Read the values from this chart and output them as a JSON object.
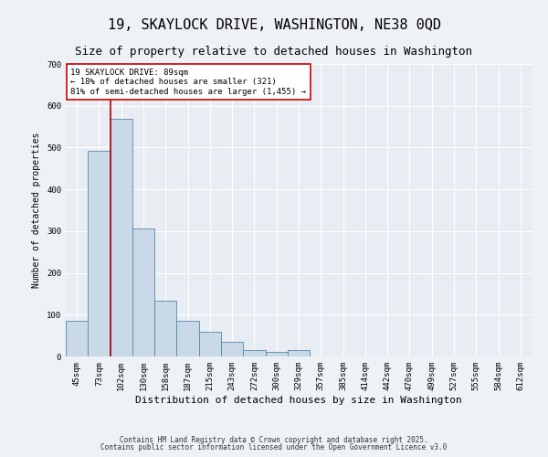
{
  "title": "19, SKAYLOCK DRIVE, WASHINGTON, NE38 0QD",
  "subtitle": "Size of property relative to detached houses in Washington",
  "xlabel": "Distribution of detached houses by size in Washington",
  "ylabel": "Number of detached properties",
  "categories": [
    "45sqm",
    "73sqm",
    "102sqm",
    "130sqm",
    "158sqm",
    "187sqm",
    "215sqm",
    "243sqm",
    "272sqm",
    "300sqm",
    "329sqm",
    "357sqm",
    "385sqm",
    "414sqm",
    "442sqm",
    "470sqm",
    "499sqm",
    "527sqm",
    "555sqm",
    "584sqm",
    "612sqm"
  ],
  "values": [
    85,
    492,
    568,
    307,
    133,
    85,
    60,
    35,
    15,
    12,
    15,
    0,
    0,
    0,
    0,
    0,
    0,
    0,
    0,
    0,
    0
  ],
  "bar_color": "#c9d9e8",
  "bar_edge_color": "#5588aa",
  "vline_x": 1.5,
  "vline_color": "#aa0000",
  "annotation_text": "19 SKAYLOCK DRIVE: 89sqm\n← 18% of detached houses are smaller (321)\n81% of semi-detached houses are larger (1,455) →",
  "annotation_box_color": "#ffffff",
  "annotation_box_edge": "#cc0000",
  "ylim": [
    0,
    700
  ],
  "yticks": [
    0,
    100,
    200,
    300,
    400,
    500,
    600,
    700
  ],
  "footer1": "Contains HM Land Registry data © Crown copyright and database right 2025.",
  "footer2": "Contains public sector information licensed under the Open Government Licence v3.0",
  "bg_color": "#eef2f7",
  "plot_bg_color": "#e8edf4",
  "grid_color": "#ffffff",
  "title_fontsize": 11,
  "subtitle_fontsize": 9,
  "xlabel_fontsize": 8,
  "ylabel_fontsize": 7,
  "tick_fontsize": 6.5,
  "annot_fontsize": 6.5,
  "footer_fontsize": 5.5
}
